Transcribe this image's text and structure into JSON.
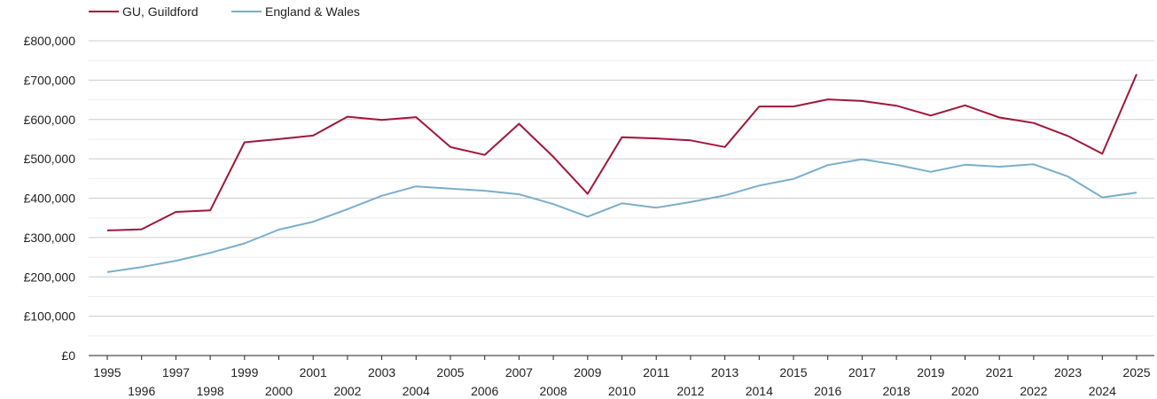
{
  "chart_data": {
    "type": "line",
    "title": "",
    "xlabel": "",
    "ylabel": "",
    "x": [
      "1995",
      "1996",
      "1997",
      "1998",
      "1999",
      "2000",
      "2001",
      "2002",
      "2003",
      "2004",
      "2005",
      "2006",
      "2007",
      "2008",
      "2009",
      "2010",
      "2011",
      "2012",
      "2013",
      "2014",
      "2015",
      "2016",
      "2017",
      "2018",
      "2019",
      "2020",
      "2021",
      "2022",
      "2023",
      "2024",
      "2025"
    ],
    "ylim": [
      0,
      800000
    ],
    "yticks": [
      {
        "value": 0,
        "label": "£0"
      },
      {
        "value": 100000,
        "label": "£100,000"
      },
      {
        "value": 200000,
        "label": "£200,000"
      },
      {
        "value": 300000,
        "label": "£300,000"
      },
      {
        "value": 400000,
        "label": "£400,000"
      },
      {
        "value": 500000,
        "label": "£500,000"
      },
      {
        "value": 600000,
        "label": "£600,000"
      },
      {
        "value": 700000,
        "label": "£700,000"
      },
      {
        "value": 800000,
        "label": "£800,000"
      }
    ],
    "grid": true,
    "legend_position": "top-left",
    "series": [
      {
        "name": "GU, Guildford",
        "color": "#a0173a",
        "values": [
          318000,
          321000,
          365000,
          369000,
          542000,
          550000,
          559000,
          607000,
          599000,
          606000,
          530000,
          510000,
          589000,
          505000,
          411000,
          555000,
          552000,
          547000,
          530000,
          633000,
          633000,
          651000,
          647000,
          635000,
          610000,
          636000,
          605000,
          591000,
          558000,
          513000,
          715000
        ]
      },
      {
        "name": "England & Wales",
        "color": "#7aaecb",
        "values": [
          212000,
          225000,
          241000,
          261000,
          285000,
          320000,
          340000,
          372000,
          406000,
          430000,
          424000,
          419000,
          410000,
          385000,
          353000,
          387000,
          376000,
          390000,
          407000,
          432000,
          449000,
          484000,
          499000,
          485000,
          467000,
          485000,
          480000,
          486000,
          455000,
          402000,
          414000
        ]
      }
    ]
  }
}
